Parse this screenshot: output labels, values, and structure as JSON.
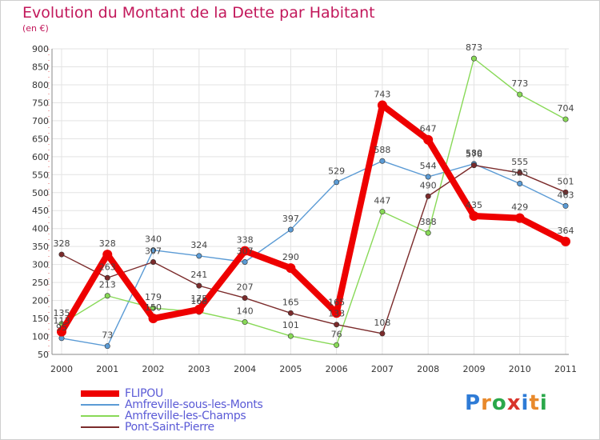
{
  "header": {
    "title": "Evolution du Montant de la Dette par Habitant",
    "subtitle": "(en €)"
  },
  "logo": {
    "text": "Proxiti",
    "letter_colors": [
      "#2e7bd6",
      "#e8892b",
      "#2aa84a",
      "#d8342c",
      "#2e7bd6",
      "#e8892b",
      "#2aa84a"
    ]
  },
  "chart_data": {
    "type": "line",
    "x": [
      "2000",
      "2001",
      "2002",
      "2003",
      "2004",
      "2005",
      "2006",
      "2007",
      "2008",
      "2009",
      "2010",
      "2011"
    ],
    "ylim": [
      50,
      900
    ],
    "yticks": [
      50,
      100,
      150,
      200,
      250,
      300,
      350,
      400,
      450,
      500,
      550,
      600,
      650,
      700,
      750,
      800,
      850,
      900
    ],
    "grid": true,
    "legend_position": "bottom-left",
    "series": [
      {
        "name": "FLIPOU",
        "color": "#ee0000",
        "emphasis": true,
        "values": [
          113,
          328,
          150,
          175,
          338,
          290,
          165,
          743,
          647,
          435,
          429,
          364
        ]
      },
      {
        "name": "Amfreville-sous-les-Monts",
        "color": "#5b9bd5",
        "values": [
          95,
          73,
          340,
          324,
          307,
          397,
          529,
          588,
          544,
          580,
          525,
          463
        ]
      },
      {
        "name": "Amfreville-les-Champs",
        "color": "#88d957",
        "values": [
          135,
          213,
          179,
          168,
          140,
          101,
          76,
          447,
          388,
          873,
          773,
          704
        ]
      },
      {
        "name": "Pont-Saint-Pierre",
        "color": "#7b2b2b",
        "values": [
          328,
          263,
          307,
          241,
          207,
          165,
          133,
          108,
          490,
          576,
          555,
          501
        ]
      }
    ]
  }
}
